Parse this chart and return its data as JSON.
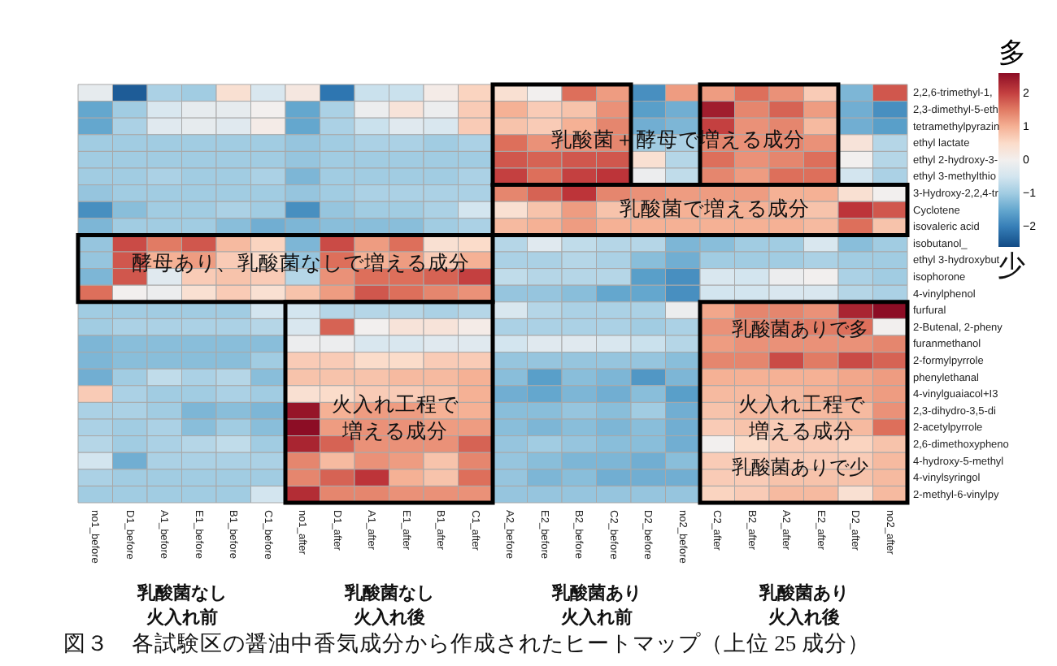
{
  "chart_data": {
    "type": "heatmap",
    "title": "図３　各試験区の醤油中香気成分から作成されたヒートマップ（上位 25 成分）",
    "categories": [
      "no1_before",
      "D1_before",
      "A1_before",
      "E1_before",
      "B1_before",
      "C1_before",
      "no1_after",
      "D1_after",
      "A1_after",
      "E1_after",
      "B1_after",
      "C1_after",
      "A2_before",
      "E2_before",
      "B2_before",
      "C2_before",
      "D2_before",
      "no2_before",
      "C2_after",
      "B2_after",
      "A2_after",
      "E2_after",
      "D2_after",
      "no2_after"
    ],
    "y_categories": [
      "2,2,6-trimethyl-1,",
      "2,3-dimethyl-5-eth",
      "tetramethylpyrazin",
      "ethyl lactate",
      "ethyl 2-hydroxy-3-",
      "ethyl 3-methylthio",
      "3-Hydroxy-2,2,4-tr",
      "Cyclotene",
      "isovaleric acid",
      "isobutanol_",
      "ethyl 3-hydroxybut",
      "isophorone",
      "4-vinylphenol",
      "furfural",
      "2-Butenal, 2-pheny",
      "furanmethanol",
      "2-formylpyrrole",
      "phenylethanal",
      "4-vinylguaiacol+I3",
      "2,3-dihydro-3,5-di",
      "2-acetylpyrrole",
      "2,6-dimethoxypheno",
      "4-hydroxy-5-methyl",
      "4-vinylsyringol",
      "2-methyl-6-vinylpy"
    ],
    "cells": [
      [
        -0.2,
        -2.4,
        -0.9,
        -1.0,
        0.4,
        -0.4,
        0.2,
        -2.1,
        -0.6,
        -0.6,
        0.1,
        0.6,
        0.4,
        0.0,
        1.6,
        1.2,
        -1.8,
        1.2,
        1.2,
        1.6,
        1.3,
        0.7,
        -1.3,
        1.8
      ],
      [
        -1.5,
        -1.0,
        -0.4,
        -0.2,
        -0.2,
        0.0,
        -1.5,
        -0.9,
        -0.1,
        0.3,
        -0.1,
        0.7,
        1.0,
        0.7,
        0.8,
        1.3,
        -1.6,
        -1.4,
        2.4,
        1.4,
        1.7,
        1.2,
        -1.4,
        -1.8
      ],
      [
        -1.5,
        -0.9,
        -0.3,
        -0.2,
        -0.3,
        0.1,
        -1.5,
        -0.9,
        -0.6,
        -0.3,
        -0.4,
        0.7,
        0.8,
        0.7,
        1.0,
        1.4,
        -1.4,
        -1.3,
        2.0,
        1.3,
        1.4,
        0.9,
        -1.4,
        -1.6
      ],
      [
        -1.0,
        -1.0,
        -1.0,
        -1.0,
        -1.0,
        -1.0,
        -1.1,
        -1.0,
        -0.9,
        -0.9,
        -1.0,
        -0.9,
        1.6,
        1.3,
        1.3,
        1.4,
        -1.0,
        -0.9,
        1.4,
        1.3,
        1.4,
        1.3,
        0.3,
        -0.8
      ],
      [
        -1.0,
        -1.0,
        -1.0,
        -1.0,
        -1.0,
        -1.0,
        -1.1,
        -1.0,
        -1.0,
        -1.0,
        -1.0,
        -1.0,
        1.8,
        1.7,
        1.8,
        1.8,
        0.4,
        -0.8,
        1.6,
        1.3,
        1.4,
        1.6,
        0.0,
        -0.8
      ],
      [
        -1.0,
        -1.0,
        -0.9,
        -1.0,
        -1.0,
        -0.9,
        -1.3,
        -1.0,
        -1.0,
        -1.0,
        -1.0,
        -0.9,
        2.0,
        1.6,
        2.0,
        2.1,
        -0.1,
        -0.7,
        1.4,
        1.2,
        1.6,
        1.6,
        -0.5,
        -0.9
      ],
      [
        -1.1,
        -1.0,
        -1.0,
        -1.0,
        -1.0,
        -1.0,
        -1.1,
        -1.0,
        -0.9,
        -0.9,
        -0.9,
        -0.9,
        1.4,
        1.7,
        2.1,
        1.4,
        1.3,
        1.2,
        1.2,
        1.2,
        1.0,
        1.0,
        0.4,
        0.0
      ],
      [
        -1.8,
        -1.2,
        -1.0,
        -1.0,
        -0.9,
        -1.0,
        -1.8,
        -1.1,
        -1.0,
        -1.0,
        -0.9,
        -0.5,
        0.4,
        0.8,
        1.2,
        0.8,
        1.0,
        1.0,
        1.0,
        1.0,
        1.0,
        0.8,
        2.1,
        1.8
      ],
      [
        -1.3,
        -1.0,
        -1.0,
        -1.0,
        -1.2,
        -1.4,
        -1.3,
        -1.2,
        -1.2,
        -1.2,
        -1.0,
        -0.9,
        0.9,
        1.0,
        1.2,
        1.0,
        1.0,
        1.0,
        1.0,
        1.0,
        1.0,
        0.9,
        1.6,
        0.8
      ],
      [
        -1.1,
        1.9,
        1.5,
        1.8,
        0.9,
        0.6,
        -1.3,
        1.9,
        1.2,
        1.6,
        0.4,
        0.5,
        -0.8,
        -0.3,
        -0.7,
        -0.8,
        -0.8,
        -1.3,
        -1.2,
        -1.0,
        -1.0,
        -0.4,
        -1.2,
        -1.0
      ],
      [
        -1.1,
        1.8,
        1.0,
        1.2,
        0.7,
        0.5,
        -1.1,
        1.6,
        1.0,
        1.2,
        0.7,
        1.0,
        -0.9,
        -0.9,
        -0.8,
        -0.9,
        -1.2,
        -1.4,
        -1.0,
        -1.0,
        -1.0,
        -0.9,
        -1.0,
        -1.0
      ],
      [
        -1.3,
        1.8,
        -0.3,
        0.7,
        0.8,
        0.7,
        -0.8,
        1.3,
        1.6,
        1.6,
        1.7,
        2.0,
        -0.7,
        -0.8,
        -0.8,
        -0.8,
        -1.6,
        -1.8,
        -0.4,
        -0.5,
        -0.1,
        0.0,
        -0.9,
        -1.0
      ],
      [
        1.6,
        0.0,
        -0.1,
        0.4,
        0.7,
        0.4,
        0.8,
        1.2,
        1.8,
        1.6,
        1.4,
        1.3,
        -1.1,
        -1.1,
        -1.2,
        -1.5,
        -1.5,
        -1.8,
        -0.5,
        -0.5,
        -0.4,
        -0.4,
        -0.8,
        -0.9
      ],
      [
        -1.0,
        -1.0,
        -1.0,
        -1.0,
        -1.0,
        -0.5,
        -0.5,
        -0.8,
        -0.8,
        -0.8,
        -0.9,
        -0.8,
        -0.4,
        -0.8,
        -0.9,
        -0.9,
        -0.9,
        -0.1,
        1.1,
        1.4,
        1.4,
        1.3,
        2.3,
        2.6
      ],
      [
        -1.0,
        -0.9,
        -0.9,
        -0.9,
        -0.9,
        -0.8,
        -0.4,
        1.7,
        0.0,
        0.3,
        0.3,
        0.1,
        -0.9,
        -0.9,
        -0.9,
        -0.9,
        -1.0,
        -0.9,
        1.3,
        1.4,
        1.5,
        1.5,
        1.6,
        0.0
      ],
      [
        -1.3,
        -1.2,
        -1.2,
        -1.2,
        -1.2,
        -1.2,
        -0.1,
        -0.1,
        -0.4,
        -0.4,
        -0.3,
        -0.3,
        -0.5,
        -0.3,
        -0.3,
        -0.4,
        -0.6,
        -0.8,
        1.2,
        1.3,
        1.3,
        1.3,
        1.3,
        1.4
      ],
      [
        -1.3,
        -1.2,
        -1.2,
        -1.2,
        -1.2,
        -1.0,
        0.7,
        0.7,
        0.5,
        0.5,
        0.7,
        0.7,
        -1.1,
        -1.1,
        -1.1,
        -1.1,
        -1.1,
        -1.2,
        1.4,
        1.4,
        1.9,
        1.5,
        1.9,
        1.7
      ],
      [
        -1.4,
        -1.0,
        -0.7,
        -0.9,
        -0.8,
        -1.2,
        0.8,
        0.8,
        0.8,
        0.9,
        0.9,
        1.0,
        -1.2,
        -1.6,
        -1.2,
        -1.3,
        -1.7,
        -1.3,
        1.0,
        1.0,
        1.0,
        1.0,
        1.1,
        1.2
      ],
      [
        0.7,
        -0.9,
        -1.0,
        -1.0,
        -0.9,
        -1.0,
        0.4,
        0.5,
        0.7,
        0.7,
        0.8,
        1.0,
        -1.4,
        -1.5,
        -1.3,
        -1.4,
        -1.2,
        -1.6,
        0.9,
        0.9,
        0.9,
        1.0,
        1.1,
        1.2
      ],
      [
        -0.9,
        -0.9,
        -1.0,
        -1.3,
        -1.2,
        -1.3,
        2.5,
        1.0,
        1.2,
        1.2,
        1.0,
        1.0,
        -1.2,
        -1.2,
        -1.1,
        -1.2,
        -1.0,
        -1.4,
        0.8,
        0.9,
        0.9,
        0.9,
        0.9,
        1.3
      ],
      [
        -0.9,
        -1.0,
        -0.9,
        -1.2,
        -1.0,
        -1.2,
        2.6,
        1.2,
        1.3,
        1.3,
        1.2,
        1.2,
        -1.2,
        -1.3,
        -1.2,
        -1.3,
        -1.2,
        -1.4,
        0.7,
        0.8,
        0.7,
        0.8,
        0.9,
        1.6
      ],
      [
        -0.8,
        -1.0,
        -0.9,
        -0.8,
        -0.7,
        -1.0,
        2.3,
        1.7,
        1.3,
        1.3,
        1.3,
        1.7,
        -1.1,
        -1.0,
        -1.1,
        -1.2,
        -1.2,
        -1.4,
        0.0,
        0.5,
        0.7,
        0.7,
        0.6,
        0.8
      ],
      [
        -0.5,
        -1.4,
        -0.9,
        -0.9,
        -0.9,
        -0.9,
        1.4,
        0.9,
        1.3,
        1.2,
        0.8,
        1.4,
        -1.1,
        -1.2,
        -1.3,
        -1.3,
        -1.4,
        -1.2,
        0.7,
        0.7,
        0.7,
        0.7,
        0.7,
        0.9
      ],
      [
        -0.9,
        -1.0,
        -1.0,
        -1.0,
        -1.0,
        -1.0,
        1.4,
        1.7,
        2.1,
        1.0,
        0.8,
        1.6,
        -1.1,
        -1.3,
        -1.2,
        -1.4,
        -1.4,
        -1.4,
        0.7,
        0.7,
        0.8,
        0.8,
        0.8,
        0.9
      ],
      [
        -1.0,
        -1.0,
        -1.0,
        -1.0,
        -1.0,
        -0.5,
        2.2,
        1.4,
        1.4,
        1.3,
        1.3,
        1.3,
        -1.1,
        -1.1,
        -1.1,
        -1.1,
        -1.1,
        -1.1,
        0.6,
        0.7,
        0.9,
        0.9,
        0.4,
        0.9
      ]
    ],
    "clim": [
      -2.6,
      2.6
    ],
    "cticks": [
      2,
      1,
      0,
      -1,
      -2
    ],
    "clabel": "多",
    "annotations": [
      "乳酸菌＋酵母で増える成分",
      "乳酸菌で増える成分",
      "酵母あり、乳酸菌なしで増える成分",
      "火入れ工程で増える成分",
      "乳酸菌ありで多",
      "火入れ工程で増える成分",
      "乳酸菌ありで少",
      "乳酸菌なし火入れ前",
      "乳酸菌なし火入れ後",
      "乳酸菌あり火入れ前",
      "乳酸菌あり火入れ後",
      "少"
    ]
  }
}
